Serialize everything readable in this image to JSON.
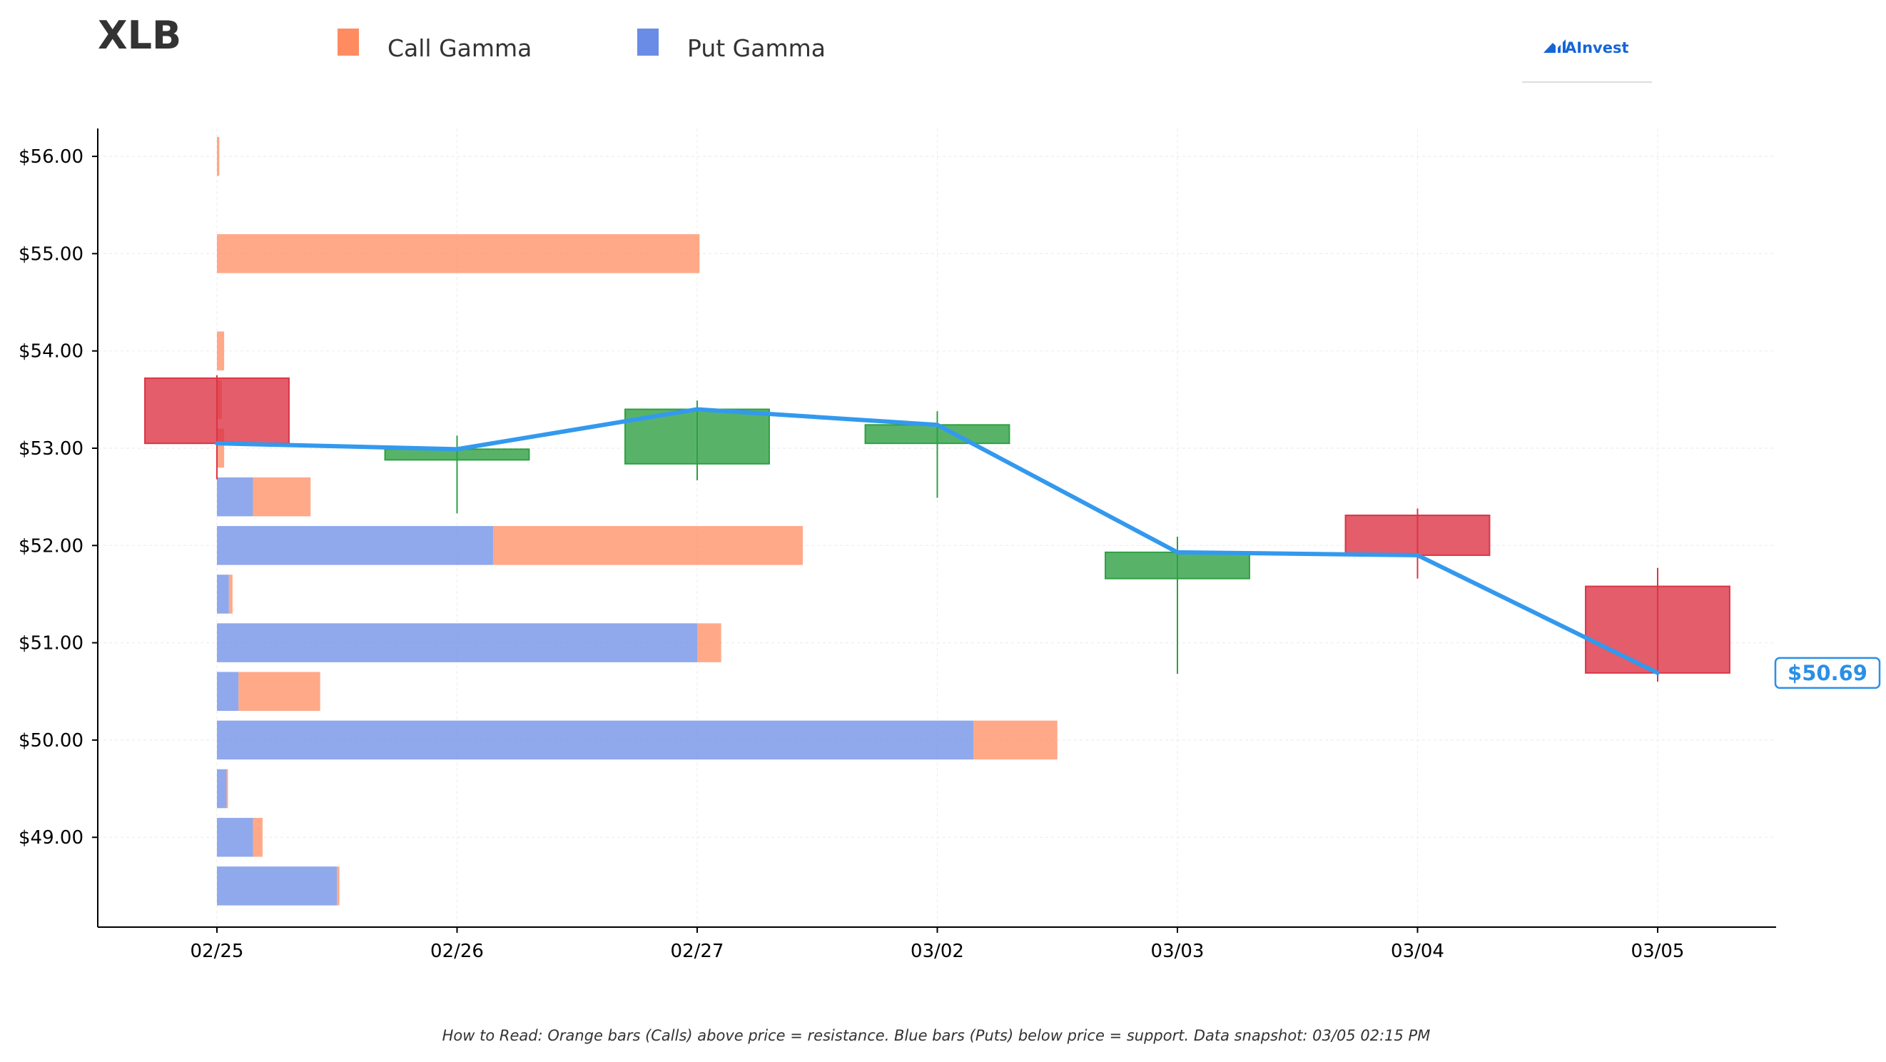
{
  "header": {
    "ticker": "XLB",
    "brand_logo_text": "AInvest"
  },
  "legend": {
    "call_label": "Call Gamma",
    "put_label": "Put Gamma"
  },
  "footer": {
    "note": "How to Read: Orange bars (Calls) above price = resistance. Blue bars (Puts) below price = support. Data snapshot: 03/05 02:15 PM"
  },
  "colors": {
    "call": "#FF8C61",
    "put": "#6B8CE6",
    "candle_up": "#2EA043",
    "candle_down": "#DC3545",
    "price_line": "#3399EE",
    "price_badge_text": "#2B8FE6",
    "title": "#333333",
    "brand": "#1565D8"
  },
  "chart_data": {
    "type": "candlestick+horizontal-bar+line",
    "x_categories": [
      "02/25",
      "02/26",
      "02/27",
      "03/02",
      "03/03",
      "03/04",
      "03/05"
    ],
    "y_ticks": [
      49,
      50,
      51,
      52,
      53,
      54,
      55,
      56
    ],
    "y_tick_labels": [
      "$49.00",
      "$50.00",
      "$51.00",
      "$52.00",
      "$53.00",
      "$54.00",
      "$55.00",
      "$56.00"
    ],
    "ylim": [
      48.17,
      56.28
    ],
    "y_axis_side": "left",
    "grid": true,
    "legend_position": "top",
    "candles": [
      {
        "date": "02/25",
        "open": 53.72,
        "close": 53.05,
        "high": 53.75,
        "low": 52.68
      },
      {
        "date": "02/26",
        "open": 52.88,
        "close": 52.99,
        "high": 53.13,
        "low": 52.33
      },
      {
        "date": "02/27",
        "open": 52.84,
        "close": 53.4,
        "high": 53.49,
        "low": 52.67
      },
      {
        "date": "03/02",
        "open": 53.05,
        "close": 53.24,
        "high": 53.38,
        "low": 52.49
      },
      {
        "date": "03/03",
        "open": 51.66,
        "close": 51.93,
        "high": 52.09,
        "low": 50.68
      },
      {
        "date": "03/04",
        "open": 52.31,
        "close": 51.9,
        "high": 52.38,
        "low": 51.66
      },
      {
        "date": "03/05",
        "open": 51.58,
        "close": 50.69,
        "high": 51.77,
        "low": 50.6
      }
    ],
    "close_line": [
      {
        "date": "02/25",
        "value": 53.05
      },
      {
        "date": "02/26",
        "value": 52.99
      },
      {
        "date": "02/27",
        "value": 53.4
      },
      {
        "date": "03/02",
        "value": 53.24
      },
      {
        "date": "03/03",
        "value": 51.93
      },
      {
        "date": "03/04",
        "value": 51.9
      },
      {
        "date": "03/05",
        "value": 50.69
      }
    ],
    "current_price": 50.69,
    "current_price_label": "$50.69",
    "gamma_bars": {
      "units": "x-axis date steps",
      "strikes": [
        48.5,
        49.0,
        49.5,
        50.0,
        50.5,
        51.0,
        51.5,
        52.0,
        52.5,
        53.0,
        53.5,
        54.0,
        55.0,
        56.0
      ],
      "put_widths": [
        0.5,
        0.15,
        0.04,
        3.15,
        0.09,
        2.0,
        0.05,
        1.15,
        0.15,
        0.0,
        0.0,
        0.0,
        0.0,
        0.0
      ],
      "call_widths": [
        0.01,
        0.04,
        0.005,
        0.35,
        0.34,
        0.1,
        0.015,
        1.29,
        0.24,
        0.03,
        0.02,
        0.03,
        2.01,
        0.01
      ]
    }
  }
}
